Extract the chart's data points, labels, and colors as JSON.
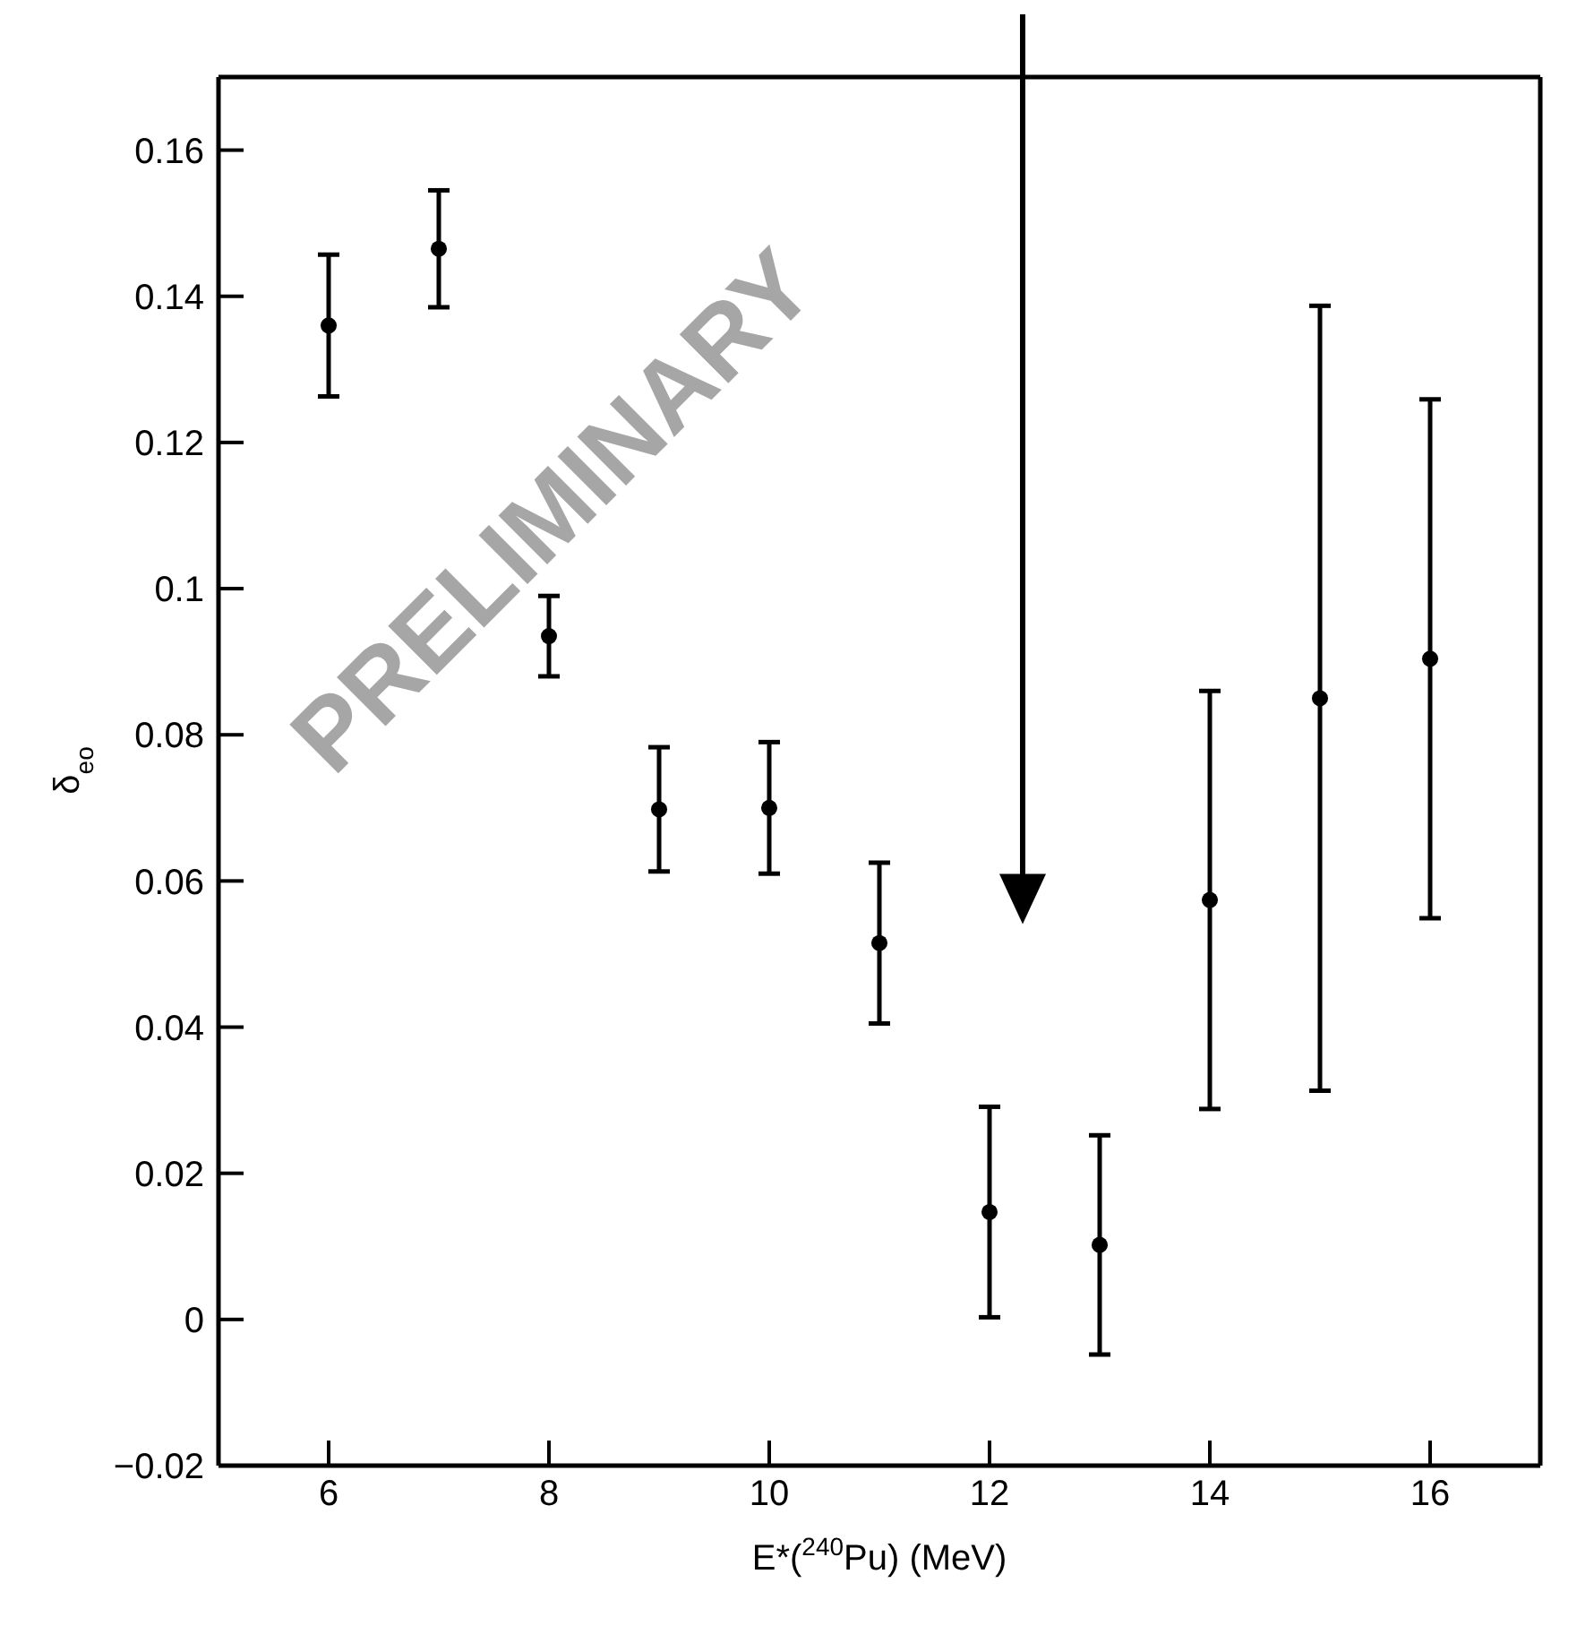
{
  "chart_data": {
    "type": "scatter",
    "xlabel": "E*($^{240}$Pu) (MeV)",
    "ylabel": "δ$_{eo}$",
    "annotations": [
      "PRELIMINARY"
    ],
    "x": [
      6,
      7,
      8,
      9,
      10,
      11,
      12,
      13,
      14,
      15,
      16
    ],
    "series": [
      {
        "color": "#000000",
        "values": [
          0.136,
          0.1465,
          0.0935,
          0.0698,
          0.07,
          0.0515,
          0.0147,
          0.0102,
          0.0574,
          0.085,
          0.0904
        ],
        "errors": [
          0.0097,
          0.008,
          0.0055,
          0.0085,
          0.009,
          0.011,
          0.0144,
          0.015,
          0.0286,
          0.0537,
          0.0355
        ]
      }
    ],
    "xlim": [
      5,
      17
    ],
    "xticks": [
      6,
      8,
      10,
      12,
      14,
      16
    ],
    "ylim": [
      -0.02,
      0.17
    ],
    "yticks": [
      {
        "value": -0.02,
        "label": "−0.02"
      },
      0,
      0.02,
      0.04,
      0.06,
      0.08,
      0.1,
      0.12,
      0.14,
      0.16
    ],
    "marker": "circle",
    "grid": false
  }
}
